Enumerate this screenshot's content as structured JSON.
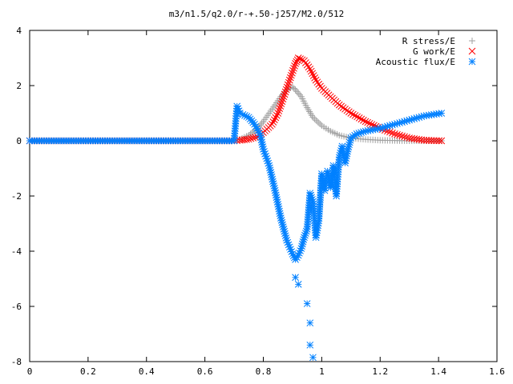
{
  "chart_data": {
    "type": "scatter",
    "title": "m3/n1.5/q2.0/r-+.50-j257/M2.0/512",
    "xlabel": "",
    "ylabel": "",
    "xlim": [
      0,
      1.6
    ],
    "ylim": [
      -8,
      4
    ],
    "x_ticks": [
      "0",
      "0.2",
      "0.4",
      "0.6",
      "0.8",
      "1",
      "1.2",
      "1.4",
      "1.6"
    ],
    "y_ticks": [
      "4",
      "2",
      "0",
      "-2",
      "-4",
      "-6",
      "-8"
    ],
    "grid": false,
    "legend_position": "top-right",
    "series": [
      {
        "name": "R stress/E",
        "marker": "plus",
        "color": "#a0a0a0",
        "points": [
          [
            0,
            0
          ],
          [
            0.2,
            0
          ],
          [
            0.4,
            0
          ],
          [
            0.6,
            0
          ],
          [
            0.7,
            0
          ],
          [
            0.72,
            0.05
          ],
          [
            0.75,
            0.2
          ],
          [
            0.78,
            0.45
          ],
          [
            0.8,
            0.7
          ],
          [
            0.82,
            1.0
          ],
          [
            0.84,
            1.3
          ],
          [
            0.86,
            1.6
          ],
          [
            0.88,
            1.85
          ],
          [
            0.9,
            1.95
          ],
          [
            0.91,
            1.85
          ],
          [
            0.93,
            1.6
          ],
          [
            0.95,
            1.2
          ],
          [
            0.97,
            0.85
          ],
          [
            1.0,
            0.55
          ],
          [
            1.03,
            0.35
          ],
          [
            1.06,
            0.2
          ],
          [
            1.1,
            0.1
          ],
          [
            1.15,
            0.05
          ],
          [
            1.2,
            0.02
          ],
          [
            1.3,
            0
          ],
          [
            1.41,
            0
          ]
        ]
      },
      {
        "name": "G work/E",
        "marker": "cross",
        "color": "#ff0000",
        "points": [
          [
            0,
            0
          ],
          [
            0.2,
            0
          ],
          [
            0.4,
            0
          ],
          [
            0.6,
            0
          ],
          [
            0.7,
            0
          ],
          [
            0.72,
            0.02
          ],
          [
            0.75,
            0.06
          ],
          [
            0.78,
            0.15
          ],
          [
            0.8,
            0.3
          ],
          [
            0.83,
            0.6
          ],
          [
            0.85,
            1.0
          ],
          [
            0.87,
            1.6
          ],
          [
            0.89,
            2.2
          ],
          [
            0.91,
            2.8
          ],
          [
            0.92,
            3.0
          ],
          [
            0.94,
            2.9
          ],
          [
            0.96,
            2.6
          ],
          [
            0.98,
            2.2
          ],
          [
            1.0,
            1.9
          ],
          [
            1.03,
            1.6
          ],
          [
            1.06,
            1.3
          ],
          [
            1.1,
            1.0
          ],
          [
            1.15,
            0.7
          ],
          [
            1.2,
            0.45
          ],
          [
            1.25,
            0.25
          ],
          [
            1.3,
            0.1
          ],
          [
            1.35,
            0.02
          ],
          [
            1.41,
            0
          ]
        ]
      },
      {
        "name": "Acoustic flux/E",
        "marker": "star",
        "color": "#0080ff",
        "points": [
          [
            0,
            0
          ],
          [
            0.2,
            0
          ],
          [
            0.4,
            0
          ],
          [
            0.6,
            0
          ],
          [
            0.7,
            0
          ],
          [
            0.71,
            1.25
          ],
          [
            0.72,
            1.0
          ],
          [
            0.73,
            0.95
          ],
          [
            0.75,
            0.85
          ],
          [
            0.77,
            0.6
          ],
          [
            0.79,
            0.2
          ],
          [
            0.8,
            -0.3
          ],
          [
            0.82,
            -0.9
          ],
          [
            0.84,
            -1.8
          ],
          [
            0.86,
            -2.8
          ],
          [
            0.88,
            -3.6
          ],
          [
            0.9,
            -4.1
          ],
          [
            0.91,
            -4.3
          ],
          [
            0.92,
            -4.15
          ],
          [
            0.93,
            -3.9
          ],
          [
            0.94,
            -3.5
          ],
          [
            0.95,
            -3.2
          ],
          [
            0.96,
            -1.9
          ],
          [
            0.97,
            -2.2
          ],
          [
            0.98,
            -3.5
          ],
          [
            0.99,
            -2.9
          ],
          [
            1.0,
            -1.2
          ],
          [
            1.01,
            -1.8
          ],
          [
            1.02,
            -1.1
          ],
          [
            1.03,
            -1.7
          ],
          [
            1.04,
            -0.9
          ],
          [
            1.05,
            -2.0
          ],
          [
            1.06,
            -0.6
          ],
          [
            1.07,
            -0.2
          ],
          [
            1.08,
            -0.8
          ],
          [
            1.09,
            -0.3
          ],
          [
            1.1,
            0.1
          ],
          [
            1.12,
            0.25
          ],
          [
            1.15,
            0.35
          ],
          [
            1.2,
            0.45
          ],
          [
            1.25,
            0.6
          ],
          [
            1.3,
            0.75
          ],
          [
            1.35,
            0.9
          ],
          [
            1.41,
            1.0
          ],
          [
            0.91,
            -4.95
          ],
          [
            0.92,
            -5.2
          ],
          [
            0.95,
            -5.9
          ],
          [
            0.96,
            -6.6
          ],
          [
            0.96,
            -7.4
          ],
          [
            0.97,
            -7.85
          ]
        ]
      }
    ]
  }
}
